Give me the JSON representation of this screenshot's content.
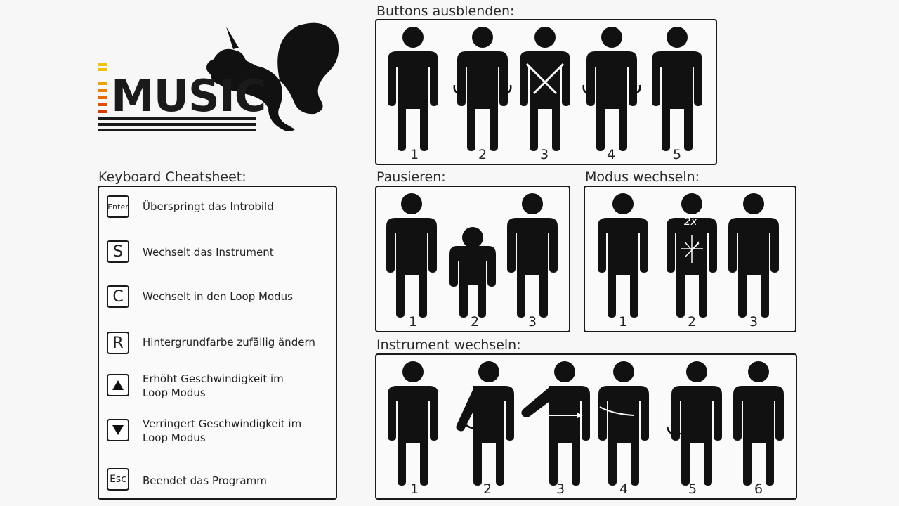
{
  "logo": {
    "text": "MUSIC"
  },
  "keyboard": {
    "title": "Keyboard Cheatsheet:",
    "items": [
      {
        "key": "Enter",
        "desc": "Überspringt das Introbild"
      },
      {
        "key": "S",
        "desc": "Wechselt das Instrument"
      },
      {
        "key": "C",
        "desc": "Wechselt in den Loop Modus"
      },
      {
        "key": "R",
        "desc": "Hintergrundfarbe zufällig ändern"
      },
      {
        "key": "up-arrow-icon",
        "desc1": "Erhöht Geschwindigkeit im",
        "desc2": "Loop Modus"
      },
      {
        "key": "down-arrow-icon",
        "desc1": "Verringert Geschwindigkeit im",
        "desc2": "Loop Modus"
      },
      {
        "key": "Esc",
        "desc": "Beendet das Programm"
      }
    ]
  },
  "sections": {
    "buttons": {
      "title": "Buttons ausblenden:",
      "numbers": [
        "1",
        "2",
        "3",
        "4",
        "5"
      ]
    },
    "pause": {
      "title": "Pausieren:",
      "numbers": [
        "1",
        "2",
        "3"
      ]
    },
    "mode": {
      "title": "Modus wechseln:",
      "numbers": [
        "1",
        "2",
        "3"
      ],
      "badge": "2x"
    },
    "instrument": {
      "title": "Instrument wechseln:",
      "numbers": [
        "1",
        "2",
        "3",
        "4",
        "5",
        "6"
      ]
    }
  }
}
